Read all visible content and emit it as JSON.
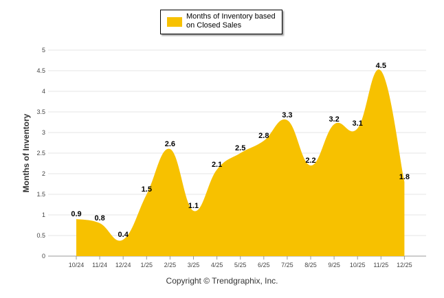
{
  "chart_data": {
    "type": "area",
    "title": "",
    "legend": {
      "label": "Months of Inventory based on Closed Sales",
      "position": "top-center"
    },
    "categories": [
      "10/24",
      "11/24",
      "12/24",
      "1/25",
      "2/25",
      "3/25",
      "4/25",
      "5/25",
      "6/25",
      "7/25",
      "8/25",
      "9/25",
      "10/25",
      "11/25",
      "12/25"
    ],
    "values": [
      0.9,
      0.8,
      0.4,
      1.5,
      2.6,
      1.1,
      2.1,
      2.5,
      2.8,
      3.3,
      2.2,
      3.2,
      3.1,
      4.5,
      1.8
    ],
    "data_labels": [
      "0.9",
      "0.8",
      "0.4",
      "1.5",
      "2.6",
      "1.1",
      "2.1",
      "2.5",
      "2.8",
      "3.3",
      "2.2",
      "3.2",
      "3.1",
      "4.5",
      "1.8"
    ],
    "ylabel": "Months of Inventory",
    "xlabel": "",
    "ylim": [
      0,
      5
    ],
    "yticks": [
      "0",
      "0.5",
      "1",
      "1.5",
      "2",
      "2.5",
      "3",
      "3.5",
      "4",
      "4.5",
      "5"
    ],
    "grid": true,
    "color": "#f7c100"
  },
  "footer": {
    "copyright": "Copyright © Trendgraphix, Inc."
  }
}
